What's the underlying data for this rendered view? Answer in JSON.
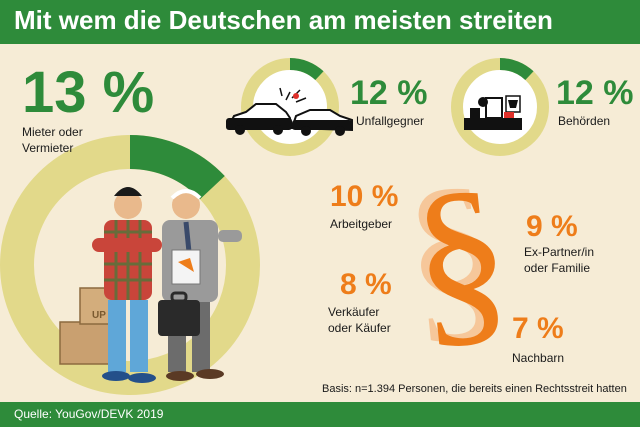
{
  "header": {
    "title": "Mit wem die Deutschen am meisten streiten"
  },
  "footer": {
    "source": "Quelle: YouGov/DEVK 2019"
  },
  "basis": "Basis: n=1.394 Personen, die bereits einen Rechtsstreit hatten",
  "colors": {
    "green": "#2e8b3a",
    "ring": "#e2d98a",
    "orange": "#ee7d1a",
    "background": "#f6ecd6"
  },
  "icons": [
    "people-arguing-illustration",
    "car-crash-icon",
    "office-desk-eagle-icon",
    "paragraph-sign-icon"
  ],
  "chart_data": {
    "type": "pie",
    "categories": [
      "Mieter oder Vermieter",
      "Unfallgegner",
      "Behörden",
      "Arbeitgeber",
      "Ex-Partner/in oder Familie",
      "Verkäufer oder Käufer",
      "Nachbarn"
    ],
    "values": [
      13,
      12,
      12,
      10,
      9,
      8,
      7
    ],
    "labels": [
      "13 %",
      "12 %",
      "12 %",
      "10 %",
      "9 %",
      "8 %",
      "7 %"
    ],
    "unit": "%",
    "title": "Mit wem die Deutschen am meisten streiten"
  }
}
